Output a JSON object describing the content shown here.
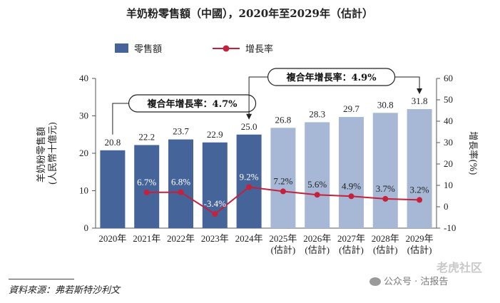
{
  "chart_data": {
    "type": "bar",
    "title": "羊奶粉零售額（中國），2020年至2029年（估計）",
    "categories": [
      [
        "2020年"
      ],
      [
        "2021年"
      ],
      [
        "2022年"
      ],
      [
        "2023年"
      ],
      [
        "2024年"
      ],
      [
        "2025年",
        "(估計)"
      ],
      [
        "2026年",
        "(估計)"
      ],
      [
        "2027年",
        "(估計)"
      ],
      [
        "2028年",
        "(估計)"
      ],
      [
        "2029年",
        "(估計)"
      ]
    ],
    "series": [
      {
        "name": "零售額",
        "type": "bar",
        "axis": "left",
        "values": [
          20.8,
          22.2,
          23.7,
          22.9,
          25.0,
          26.8,
          28.3,
          29.7,
          30.8,
          31.8
        ],
        "value_labels": [
          "20.8",
          "22.2",
          "23.7",
          "22.9",
          "25.0",
          "26.8",
          "28.3",
          "29.7",
          "30.8",
          "31.8"
        ],
        "estimated": [
          false,
          false,
          false,
          false,
          false,
          true,
          true,
          true,
          true,
          true
        ],
        "color_actual": "#45649a",
        "color_estimated": "#a6b8d6"
      },
      {
        "name": "增長率",
        "type": "line",
        "axis": "right",
        "values": [
          null,
          6.7,
          6.8,
          -3.4,
          9.2,
          7.2,
          5.6,
          4.9,
          3.7,
          3.2
        ],
        "value_labels": [
          "",
          "6.7%",
          "6.8%",
          "-3.4%",
          "9.2%",
          "7.2%",
          "5.6%",
          "4.9%",
          "3.7%",
          "3.2%"
        ],
        "color": "#c5213b"
      }
    ],
    "ylabel": "羊奶粉零售額\n(人民幣十億元)",
    "ylabel_lines": [
      "羊奶粉零售額",
      "(人民幣十億元)"
    ],
    "y2label": "增長率(%)",
    "ylim": [
      0,
      40
    ],
    "yticks": [
      0,
      10,
      20,
      30,
      40
    ],
    "y2lim": [
      -10,
      60
    ],
    "y2ticks": [
      -10,
      0,
      10,
      20,
      30,
      40,
      50,
      60
    ],
    "legend_position": "top-left",
    "annotations": [
      {
        "text": "複合年增長率：4.7%",
        "from_index": 0,
        "to_index": 4
      },
      {
        "text": "複合年增長率：4.9%",
        "from_index": 4,
        "to_index": 9
      }
    ]
  },
  "source": "資料來源：弗若斯特沙利文",
  "watermark": {
    "main": "公众号 · 沽报告",
    "faint": "老虎社区"
  }
}
